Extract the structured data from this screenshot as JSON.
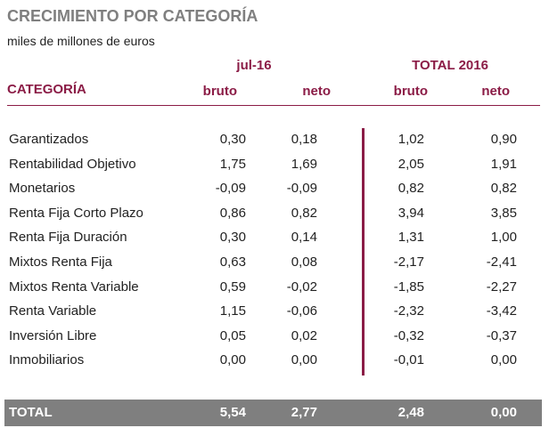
{
  "chart_data": {
    "type": "table",
    "title": "CRECIMIENTO POR CATEGORÍA",
    "subtitle": "miles de millones de euros",
    "category_header": "CATEGORÍA",
    "groups": [
      {
        "label": "jul-16",
        "columns": [
          "bruto",
          "neto"
        ]
      },
      {
        "label": "TOTAL 2016",
        "columns": [
          "bruto",
          "neto"
        ]
      }
    ],
    "rows": [
      {
        "category": "Garantizados",
        "values": [
          "0,30",
          "0,18",
          "1,02",
          "0,90"
        ]
      },
      {
        "category": "Rentabilidad Objetivo",
        "values": [
          "1,75",
          "1,69",
          "2,05",
          "1,91"
        ]
      },
      {
        "category": "Monetarios",
        "values": [
          "-0,09",
          "-0,09",
          "0,82",
          "0,82"
        ]
      },
      {
        "category": "Renta Fija Corto Plazo",
        "values": [
          "0,86",
          "0,82",
          "3,94",
          "3,85"
        ]
      },
      {
        "category": "Renta Fija Duración",
        "values": [
          "0,30",
          "0,14",
          "1,31",
          "1,00"
        ]
      },
      {
        "category": "Mixtos Renta Fija",
        "values": [
          "0,63",
          "0,08",
          "-2,17",
          "-2,41"
        ]
      },
      {
        "category": "Mixtos Renta Variable",
        "values": [
          "0,59",
          "-0,02",
          "-1,85",
          "-2,27"
        ]
      },
      {
        "category": "Renta Variable",
        "values": [
          "1,15",
          "-0,06",
          "-2,32",
          "-3,42"
        ]
      },
      {
        "category": "Inversión Libre",
        "values": [
          "0,05",
          "0,02",
          "-0,32",
          "-0,37"
        ]
      },
      {
        "category": "Inmobiliarios",
        "values": [
          "0,00",
          "0,00",
          "-0,01",
          "0,00"
        ]
      }
    ],
    "total": {
      "category": "TOTAL",
      "values": [
        "5,54",
        "2,77",
        "2,48",
        "0,00"
      ]
    },
    "colors": {
      "accent": "#8b1c46",
      "title": "#7f7f7f",
      "total_bg": "#7f7f7f",
      "total_text": "#ffffff",
      "text": "#222222"
    }
  }
}
